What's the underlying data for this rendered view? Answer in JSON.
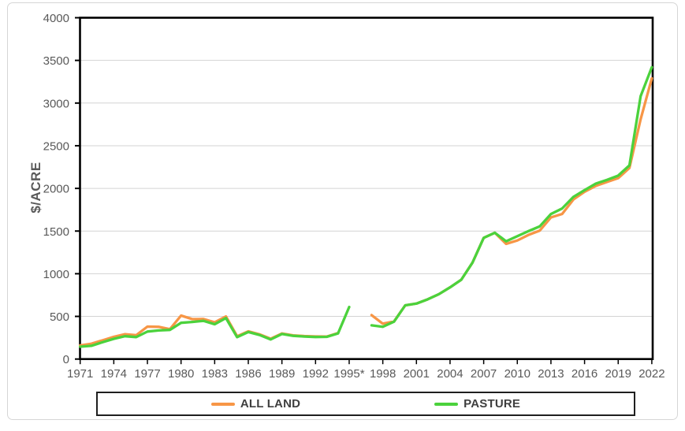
{
  "chart_data": {
    "type": "line",
    "ylabel": "$/ACRE",
    "ylim": [
      0,
      4000
    ],
    "grid": true,
    "legend_position": "bottom",
    "start_year": 1971,
    "end_year": 2022,
    "y_tick_labels": [
      "0",
      "500",
      "1000",
      "1500",
      "2000",
      "2500",
      "3000",
      "3500",
      "4000"
    ],
    "x_tick_labels": [
      "1971",
      "1974",
      "1977",
      "1980",
      "1983",
      "1986",
      "1989",
      "1992",
      "1995*",
      "1998",
      "2001",
      "2004",
      "2007",
      "2010",
      "2013",
      "2016",
      "2019",
      "2022"
    ],
    "series": [
      {
        "name": "ALL LAND",
        "color": "#F79646",
        "values": [
          160,
          180,
          220,
          260,
          292,
          280,
          380,
          378,
          350,
          510,
          468,
          470,
          430,
          500,
          268,
          325,
          290,
          238,
          300,
          278,
          270,
          265,
          263,
          305,
          null,
          null,
          515,
          415,
          440,
          630,
          650,
          700,
          760,
          840,
          930,
          1130,
          1420,
          1480,
          1350,
          1390,
          1455,
          1505,
          1660,
          1700,
          1870,
          1960,
          2030,
          2075,
          2120,
          2240,
          2810,
          3290
        ]
      },
      {
        "name": "PASTURE",
        "color": "#4BD23C",
        "values": [
          145,
          155,
          198,
          237,
          268,
          258,
          322,
          335,
          342,
          425,
          435,
          448,
          408,
          480,
          257,
          317,
          283,
          230,
          294,
          272,
          264,
          259,
          260,
          300,
          610,
          null,
          395,
          378,
          438,
          630,
          650,
          700,
          760,
          840,
          930,
          1130,
          1420,
          1480,
          1380,
          1440,
          1500,
          1555,
          1700,
          1765,
          1900,
          1980,
          2055,
          2100,
          2150,
          2270,
          3080,
          3420
        ]
      }
    ]
  }
}
